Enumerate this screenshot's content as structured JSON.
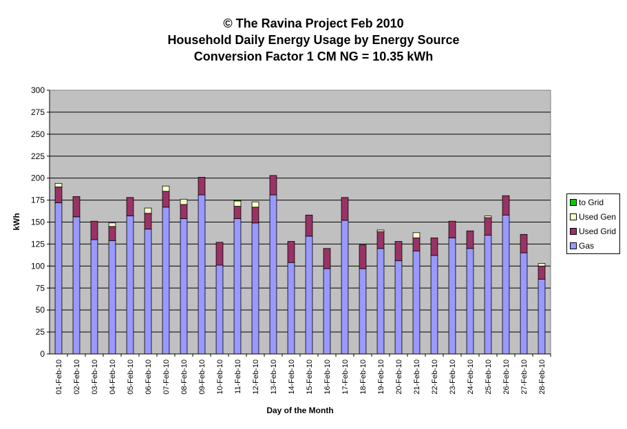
{
  "chart_data": {
    "type": "bar",
    "stacked": true,
    "title": [
      "© The Ravina Project Feb 2010",
      "Household Daily Energy Usage by Energy Source",
      "Conversion Factor 1 CM NG = 10.35 kWh"
    ],
    "xlabel": "Day of the Month",
    "ylabel": "kWh",
    "ylim": [
      0,
      300
    ],
    "yticks": [
      0,
      25,
      50,
      75,
      100,
      125,
      150,
      175,
      200,
      225,
      250,
      275,
      300
    ],
    "grid": true,
    "legend_position": "right",
    "categories": [
      "01-Feb-10",
      "02-Feb-10",
      "03-Feb-10",
      "04-Feb-10",
      "05-Feb-10",
      "06-Feb-10",
      "07-Feb-10",
      "08-Feb-10",
      "09-Feb-10",
      "10-Feb-10",
      "11-Feb-10",
      "12-Feb-10",
      "13-Feb-10",
      "14-Feb-10",
      "15-Feb-10",
      "16-Feb-10",
      "17-Feb-10",
      "18-Feb-10",
      "19-Feb-10",
      "20-Feb-10",
      "21-Feb-10",
      "22-Feb-10",
      "23-Feb-10",
      "24-Feb-10",
      "25-Feb-10",
      "26-Feb-10",
      "27-Feb-10",
      "28-Feb-10"
    ],
    "series": [
      {
        "name": "Gas",
        "color": "#9999ff",
        "values": [
          172,
          156,
          130,
          129,
          157,
          142,
          167,
          154,
          181,
          101,
          154,
          149,
          181,
          104,
          134,
          97,
          152,
          97,
          120,
          106,
          117,
          112,
          132,
          120,
          135,
          158,
          115,
          85
        ]
      },
      {
        "name": "Used Grid",
        "color": "#993366",
        "values": [
          18,
          23,
          21,
          16,
          21,
          18,
          18,
          16,
          20,
          26,
          14,
          18,
          22,
          24,
          24,
          23,
          26,
          27,
          19,
          22,
          15,
          20,
          19,
          20,
          20,
          22,
          21,
          15
        ]
      },
      {
        "name": "Used Gen",
        "color": "#ffffcc",
        "values": [
          4,
          0,
          0,
          4,
          0,
          6,
          6,
          6,
          0,
          0,
          6,
          6,
          0,
          0,
          0,
          0,
          0,
          0,
          2,
          0,
          6,
          0,
          0,
          0,
          2,
          0,
          0,
          3
        ]
      },
      {
        "name": "to Grid",
        "color": "#00cc00",
        "values": [
          0,
          0,
          0,
          0,
          0,
          0,
          0,
          0,
          0,
          0,
          1,
          0,
          0,
          0,
          0,
          0,
          0,
          0,
          0,
          0,
          0,
          0,
          0,
          0,
          0,
          0,
          0,
          0
        ]
      }
    ]
  },
  "colors": {
    "plot_background": "#c0c0c0",
    "gridline": "#000000"
  },
  "legend_order": [
    "to Grid",
    "Used Gen",
    "Used Grid",
    "Gas"
  ]
}
